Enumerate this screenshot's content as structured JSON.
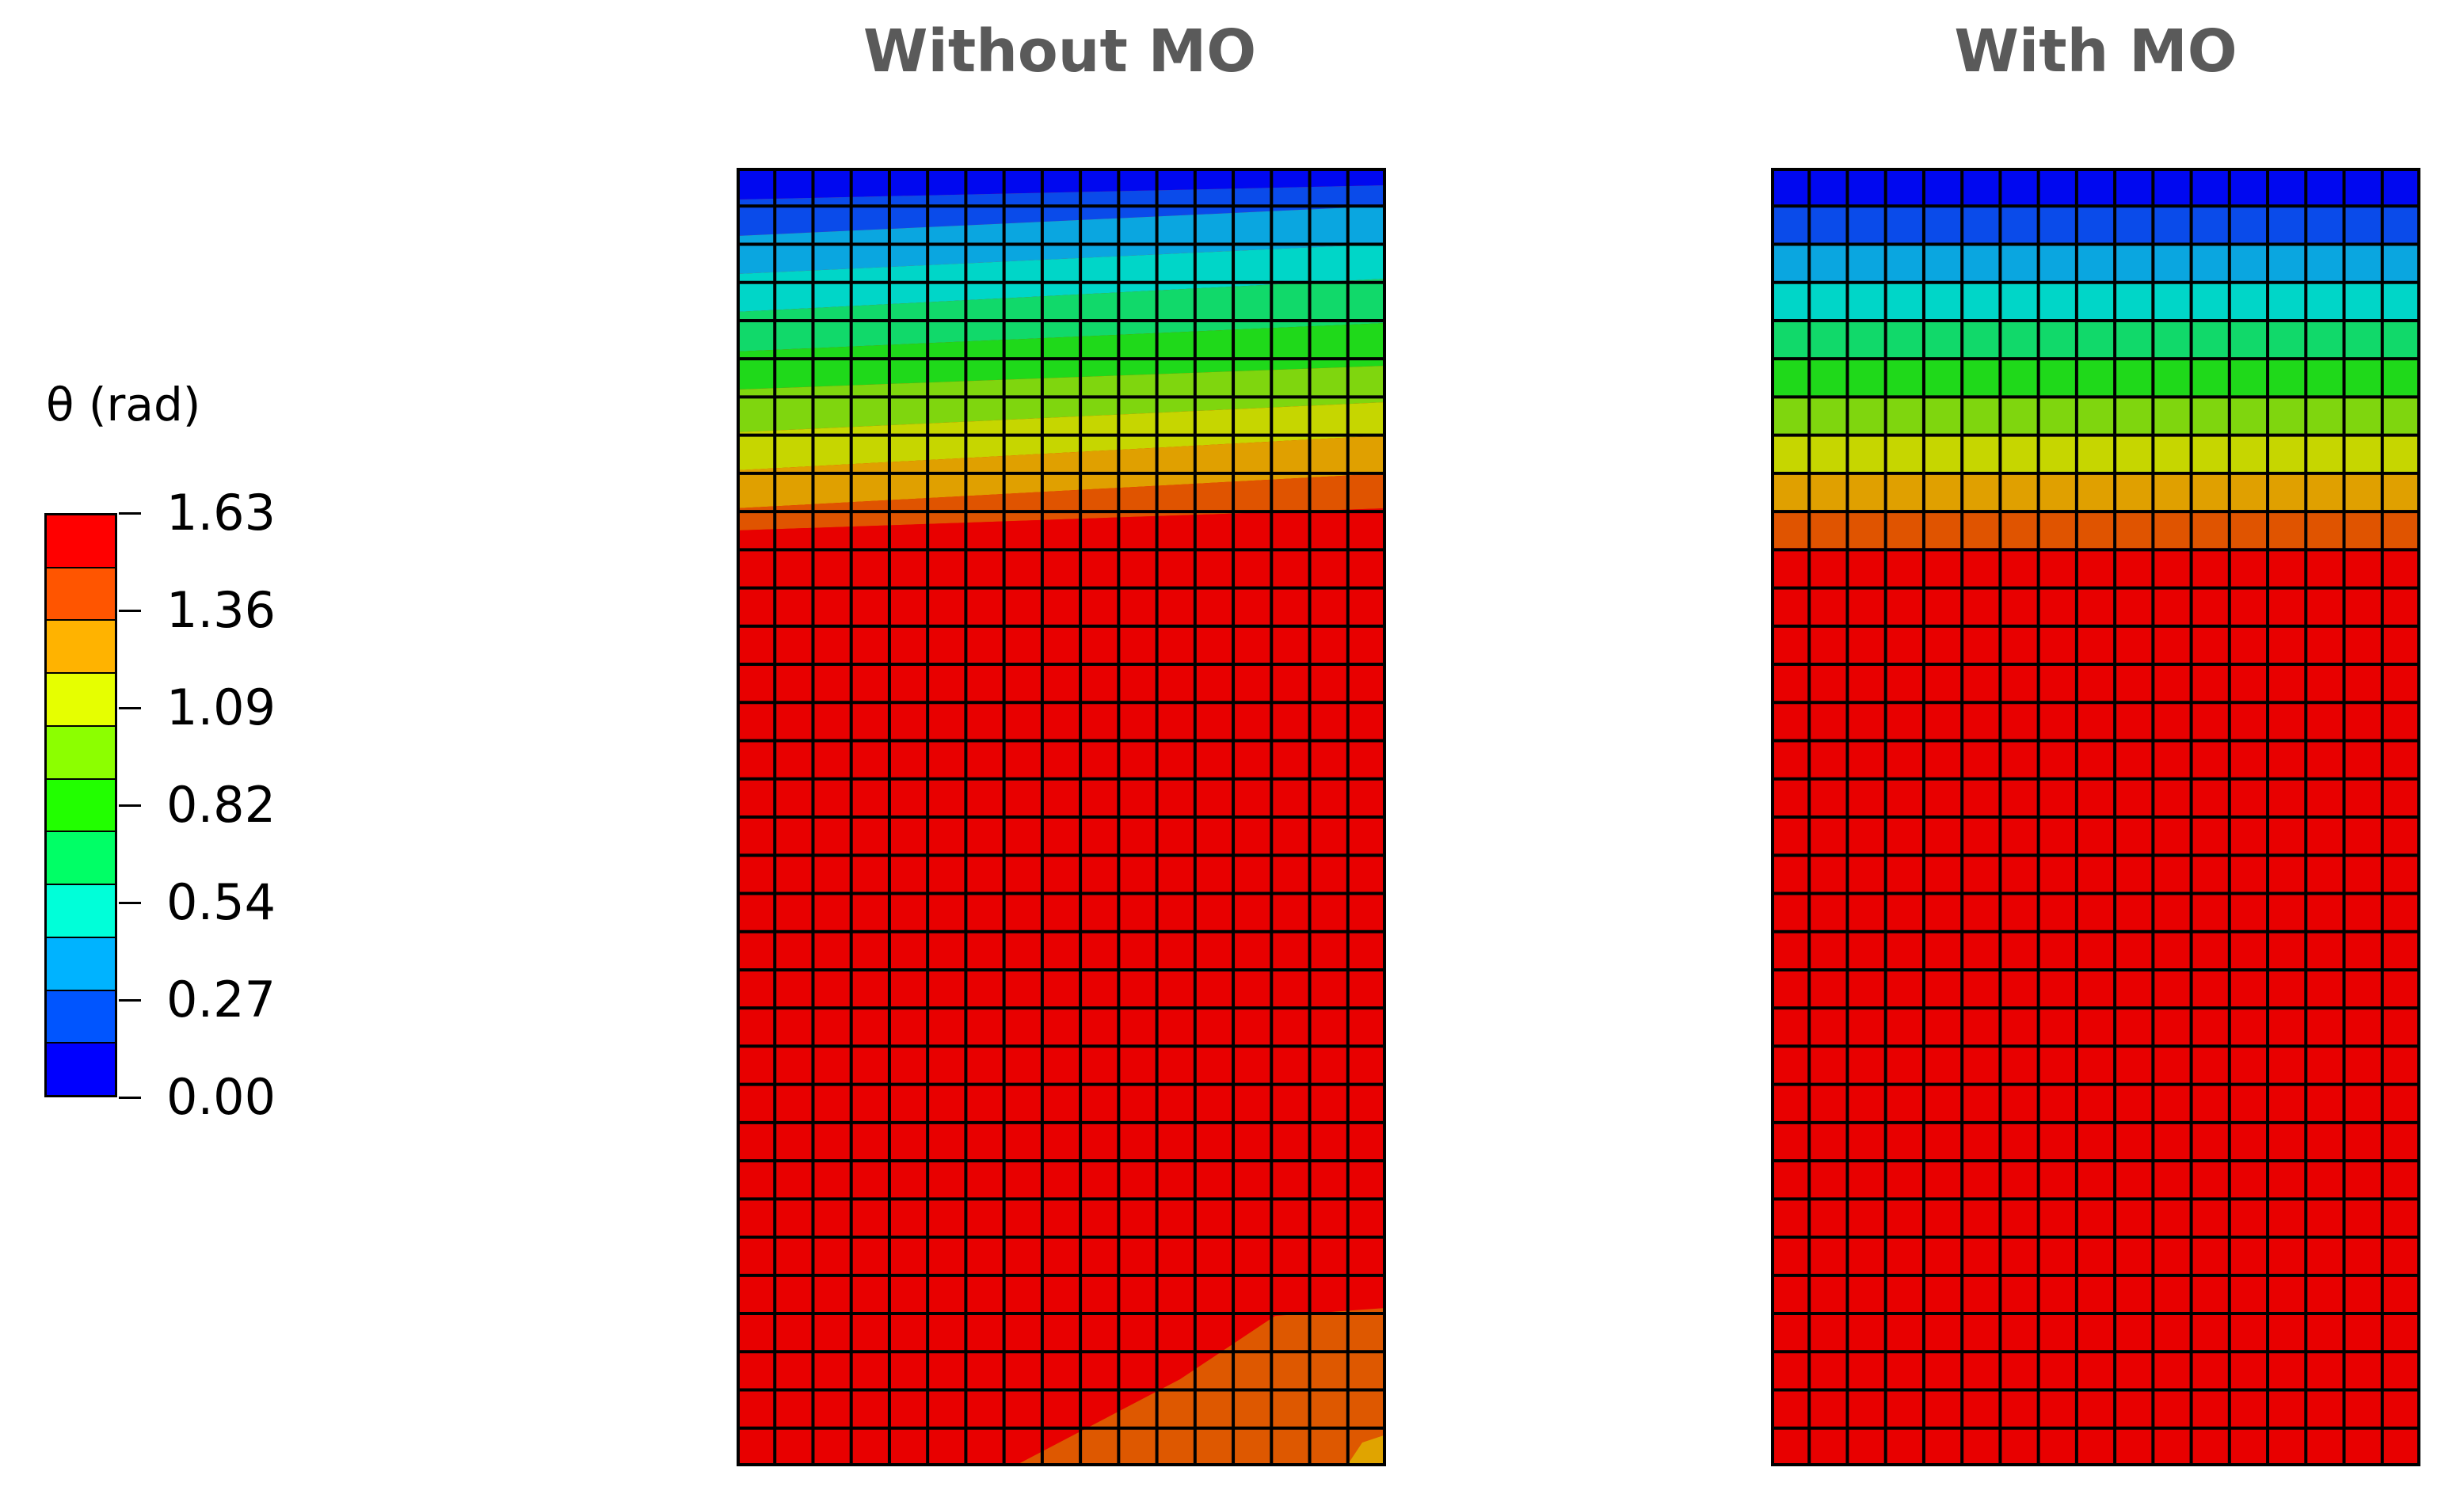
{
  "panels": {
    "left_title": "Without MO",
    "right_title": "With MO"
  },
  "legend": {
    "title": "θ (rad)",
    "tick_labels": [
      "1.63",
      "1.36",
      "1.09",
      "0.82",
      "0.54",
      "0.27",
      "0.00"
    ],
    "colors_top_to_bottom": [
      "#ff0000",
      "#ff5500",
      "#ffb300",
      "#e6ff00",
      "#8cff00",
      "#22ff00",
      "#00ff66",
      "#00ffd9",
      "#00b3ff",
      "#0055ff",
      "#0000ff"
    ]
  },
  "mesh": {
    "columns": 17,
    "rows": 34
  },
  "colors": {
    "title_text": "#5a5a5a",
    "mesh_lines": "#000000",
    "background": "#ffffff"
  }
}
